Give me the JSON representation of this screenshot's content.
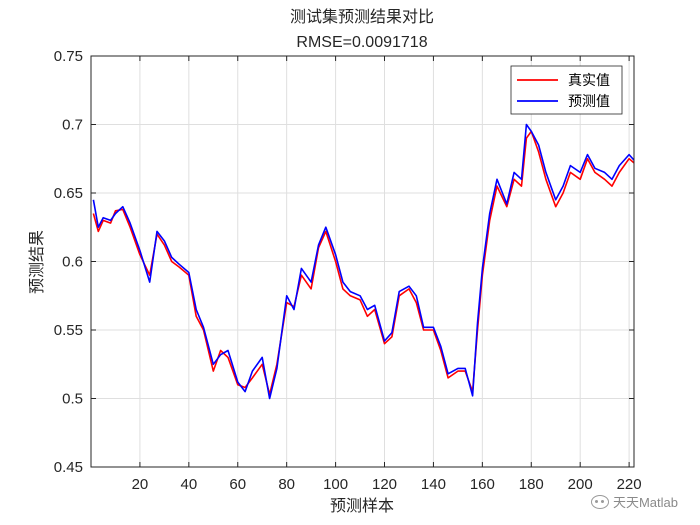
{
  "chart_data": {
    "type": "line",
    "title": "测试集预测结果对比",
    "subtitle": "RMSE=0.0091718",
    "xlabel": "预测样本",
    "ylabel": "预测结果",
    "xlim": [
      0,
      222
    ],
    "ylim": [
      0.45,
      0.75
    ],
    "xticks": [
      20,
      40,
      60,
      80,
      100,
      120,
      140,
      160,
      180,
      200,
      220
    ],
    "yticks": [
      0.45,
      0.5,
      0.55,
      0.6,
      0.65,
      0.7,
      0.75
    ],
    "ytick_labels": [
      "0.45",
      "0.5",
      "0.55",
      "0.6",
      "0.65",
      "0.7",
      "0.75"
    ],
    "grid": true,
    "legend_position": "top-right",
    "series": [
      {
        "name": "真实值",
        "color": "#ff0000",
        "x": [
          1,
          3,
          5,
          8,
          10,
          13,
          16,
          20,
          24,
          27,
          30,
          33,
          36,
          40,
          43,
          46,
          50,
          53,
          56,
          60,
          63,
          66,
          70,
          73,
          76,
          80,
          83,
          86,
          90,
          93,
          96,
          100,
          103,
          106,
          110,
          113,
          116,
          120,
          123,
          126,
          130,
          133,
          136,
          140,
          143,
          146,
          150,
          153,
          156,
          158,
          160,
          163,
          166,
          170,
          173,
          176,
          178,
          180,
          183,
          186,
          190,
          193,
          196,
          200,
          203,
          206,
          210,
          213,
          216,
          220,
          222
        ],
        "y": [
          0.635,
          0.622,
          0.63,
          0.628,
          0.637,
          0.638,
          0.625,
          0.605,
          0.59,
          0.62,
          0.612,
          0.6,
          0.596,
          0.59,
          0.56,
          0.55,
          0.52,
          0.535,
          0.53,
          0.51,
          0.508,
          0.515,
          0.525,
          0.503,
          0.525,
          0.57,
          0.567,
          0.59,
          0.58,
          0.61,
          0.622,
          0.6,
          0.58,
          0.575,
          0.572,
          0.56,
          0.565,
          0.54,
          0.545,
          0.575,
          0.58,
          0.57,
          0.55,
          0.55,
          0.535,
          0.515,
          0.52,
          0.52,
          0.505,
          0.55,
          0.59,
          0.63,
          0.655,
          0.64,
          0.66,
          0.655,
          0.69,
          0.695,
          0.68,
          0.66,
          0.64,
          0.65,
          0.665,
          0.66,
          0.675,
          0.665,
          0.66,
          0.655,
          0.665,
          0.675,
          0.672
        ]
      },
      {
        "name": "预测值",
        "color": "#0000ff",
        "x": [
          1,
          3,
          5,
          8,
          10,
          13,
          16,
          20,
          24,
          27,
          30,
          33,
          36,
          40,
          43,
          46,
          50,
          53,
          56,
          60,
          63,
          66,
          70,
          73,
          76,
          80,
          83,
          86,
          90,
          93,
          96,
          100,
          103,
          106,
          110,
          113,
          116,
          120,
          123,
          126,
          130,
          133,
          136,
          140,
          143,
          146,
          150,
          153,
          156,
          158,
          160,
          163,
          166,
          170,
          173,
          176,
          178,
          180,
          183,
          186,
          190,
          193,
          196,
          200,
          203,
          206,
          210,
          213,
          216,
          220,
          222
        ],
        "y": [
          0.645,
          0.625,
          0.632,
          0.63,
          0.635,
          0.64,
          0.628,
          0.608,
          0.585,
          0.622,
          0.615,
          0.603,
          0.598,
          0.592,
          0.565,
          0.552,
          0.525,
          0.532,
          0.535,
          0.512,
          0.505,
          0.52,
          0.53,
          0.5,
          0.522,
          0.575,
          0.565,
          0.595,
          0.585,
          0.612,
          0.625,
          0.605,
          0.585,
          0.578,
          0.575,
          0.565,
          0.568,
          0.542,
          0.548,
          0.578,
          0.582,
          0.575,
          0.552,
          0.552,
          0.538,
          0.518,
          0.522,
          0.522,
          0.502,
          0.555,
          0.595,
          0.635,
          0.66,
          0.642,
          0.665,
          0.66,
          0.7,
          0.695,
          0.685,
          0.665,
          0.645,
          0.655,
          0.67,
          0.665,
          0.678,
          0.668,
          0.665,
          0.66,
          0.67,
          0.678,
          0.674
        ]
      }
    ]
  },
  "watermark": {
    "text": "天天Matlab",
    "icon": "wechat-icon"
  }
}
